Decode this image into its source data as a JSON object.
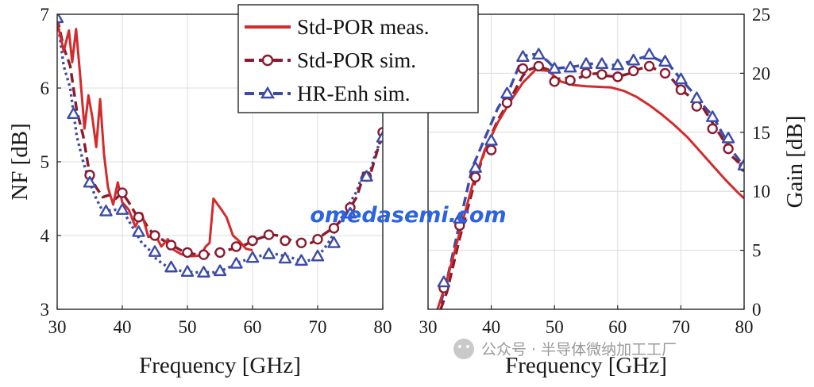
{
  "chart_data": [
    {
      "type": "line",
      "xlabel": "Frequency [GHz]",
      "ylabel": "NF [dB]",
      "xlim": [
        30,
        80
      ],
      "ylim": [
        3,
        7
      ],
      "xticks": [
        30,
        40,
        50,
        60,
        70,
        80
      ],
      "yticks": [
        3,
        4,
        5,
        6,
        7
      ],
      "grid": true,
      "series": [
        {
          "name": "Std-POR meas.",
          "color": "#d32b2b",
          "style": "solid",
          "marker": "none",
          "x": [
            30,
            31,
            31.8,
            32.3,
            32.9,
            33.5,
            34.2,
            34.8,
            35.4,
            36.0,
            36.6,
            37.2,
            37.8,
            38.6,
            39.3,
            40.0,
            41.0,
            42.0,
            43.0,
            44.0,
            45.0,
            46.0,
            47.0,
            48.0,
            49.0,
            50.0,
            51.0,
            52.0,
            52.8,
            53.4,
            54.0,
            55.0,
            56.0,
            57.0,
            58.0,
            59.0,
            60.0
          ],
          "y": [
            6.9,
            6.5,
            6.78,
            6.35,
            6.8,
            6.2,
            5.45,
            5.9,
            5.6,
            5.2,
            5.85,
            5.1,
            4.65,
            4.42,
            4.72,
            4.45,
            4.35,
            4.12,
            4.3,
            3.98,
            4.02,
            3.85,
            3.95,
            3.8,
            3.75,
            3.72,
            3.72,
            3.73,
            3.85,
            3.9,
            4.5,
            4.38,
            4.25,
            4.0,
            3.92,
            3.82,
            3.8
          ]
        },
        {
          "name": "Std-POR sim.",
          "color": "#8b1a2e",
          "style": "dashed",
          "marker": "circle",
          "x": [
            30,
            31,
            32,
            33,
            34,
            35,
            36,
            37,
            38,
            39,
            40,
            41,
            42,
            43,
            44,
            45,
            46,
            47,
            48,
            49,
            50,
            51,
            52,
            53,
            54,
            55,
            56,
            57,
            58,
            59,
            60,
            61,
            62,
            63,
            64,
            65,
            66,
            67,
            68,
            69,
            70,
            71,
            72,
            73,
            74,
            75,
            76,
            77,
            78,
            79,
            80
          ],
          "y": [
            6.95,
            6.55,
            6.3,
            5.7,
            5.35,
            4.82,
            4.65,
            4.52,
            4.55,
            4.5,
            4.58,
            4.45,
            4.3,
            4.25,
            4.1,
            4.0,
            3.95,
            3.9,
            3.85,
            3.8,
            3.77,
            3.75,
            3.74,
            3.74,
            3.76,
            3.77,
            3.8,
            3.82,
            3.85,
            3.88,
            3.93,
            3.96,
            3.99,
            4.01,
            4.0,
            3.98,
            3.93,
            3.91,
            3.89,
            3.9,
            3.95,
            4.02,
            4.08,
            4.15,
            4.25,
            4.38,
            4.52,
            4.8,
            4.8,
            5.1,
            5.4
          ]
        },
        {
          "name": "HR-Enh sim.",
          "color": "#3b4ba8",
          "style": "dotted",
          "marker": "triangle",
          "x": [
            30,
            31,
            32,
            33,
            34,
            35,
            36,
            37,
            38,
            39,
            40,
            41,
            42,
            43,
            44,
            45,
            46,
            47,
            48,
            49,
            50,
            51,
            52,
            53,
            54,
            55,
            56,
            57,
            58,
            59,
            60,
            61,
            62,
            63,
            64,
            65,
            66,
            67,
            68,
            69,
            70,
            71,
            72,
            73,
            74,
            75,
            76,
            77,
            78,
            79,
            80
          ],
          "y": [
            6.95,
            6.3,
            6.0,
            5.35,
            5.0,
            4.72,
            4.5,
            4.33,
            4.34,
            4.35,
            4.35,
            4.2,
            4.05,
            3.9,
            3.82,
            3.7,
            3.63,
            3.57,
            3.55,
            3.52,
            3.51,
            3.5,
            3.5,
            3.5,
            3.5,
            3.52,
            3.55,
            3.6,
            3.64,
            3.67,
            3.7,
            3.72,
            3.74,
            3.76,
            3.74,
            3.72,
            3.7,
            3.67,
            3.65,
            3.67,
            3.72,
            3.82,
            3.95,
            4.12,
            4.3,
            4.45,
            4.6,
            4.85,
            4.85,
            5.15,
            5.33
          ]
        }
      ],
      "markers": {
        "Std-POR sim.": {
          "x": [
            35,
            40,
            42.5,
            45,
            47.5,
            50,
            52.5,
            55,
            57.5,
            60,
            62.5,
            65,
            67.5,
            70,
            72.5,
            75,
            77.5,
            80
          ],
          "y": [
            4.82,
            4.58,
            4.25,
            4.0,
            3.87,
            3.77,
            3.74,
            3.77,
            3.85,
            3.93,
            4.01,
            3.93,
            3.9,
            3.95,
            4.1,
            4.38,
            4.8,
            5.4
          ]
        },
        "HR-Enh sim.": {
          "x": [
            30,
            32.5,
            35,
            37.5,
            40,
            42.5,
            45,
            47.5,
            50,
            52.5,
            55,
            57.5,
            60,
            62.5,
            65,
            67.5,
            70,
            72.5,
            75,
            77.5,
            80
          ],
          "y": [
            6.95,
            5.65,
            4.72,
            4.33,
            4.35,
            4.05,
            3.78,
            3.57,
            3.51,
            3.5,
            3.52,
            3.62,
            3.7,
            3.75,
            3.69,
            3.66,
            3.72,
            3.9,
            4.3,
            4.8,
            5.33
          ]
        }
      }
    },
    {
      "type": "line",
      "xlabel": "Frequency [GHz]",
      "ylabel": "Gain [dB]",
      "xlim": [
        30,
        80
      ],
      "ylim": [
        0,
        25
      ],
      "xticks": [
        30,
        40,
        50,
        60,
        70,
        80
      ],
      "yticks": [
        0,
        5,
        10,
        15,
        20,
        25
      ],
      "grid": true,
      "series": [
        {
          "name": "Std-POR meas.",
          "color": "#d32b2b",
          "style": "solid",
          "marker": "none",
          "x": [
            31.5,
            33,
            35,
            37,
            39,
            41,
            43,
            45,
            47,
            49,
            51,
            53,
            55,
            57,
            59,
            61,
            63,
            65,
            67,
            69,
            71,
            73,
            75,
            77,
            79,
            80
          ],
          "y": [
            0,
            2.5,
            6.5,
            10.5,
            13.5,
            15.8,
            17.6,
            19.2,
            20.3,
            20.2,
            19.3,
            19.0,
            18.9,
            18.85,
            18.8,
            18.5,
            18.0,
            17.3,
            16.5,
            15.6,
            14.6,
            13.4,
            12.2,
            11.0,
            9.9,
            9.4
          ]
        },
        {
          "name": "Std-POR sim.",
          "color": "#8b1a2e",
          "style": "dashed",
          "marker": "circle",
          "x": [
            32,
            33,
            35,
            37,
            39,
            41,
            43,
            45,
            46,
            47.5,
            49,
            50,
            52,
            53.5,
            55,
            57,
            58,
            60,
            62,
            63,
            65,
            67,
            68,
            70,
            72,
            73,
            75,
            77,
            78,
            80
          ],
          "y": [
            0,
            1.5,
            6.0,
            10.0,
            13.5,
            16.0,
            17.8,
            19.8,
            20.3,
            20.6,
            20.3,
            19.5,
            19.6,
            19.5,
            19.9,
            20.0,
            19.8,
            19.7,
            20.0,
            20.3,
            20.6,
            20.1,
            19.9,
            18.6,
            17.8,
            17.5,
            15.8,
            14.1,
            13.0,
            12.0
          ]
        },
        {
          "name": "HR-Enh sim.",
          "color": "#3b4ba8",
          "style": "dashed",
          "marker": "triangle",
          "x": [
            32,
            33,
            35,
            37,
            39,
            41,
            43,
            45,
            46,
            47.5,
            49,
            50,
            52,
            53.5,
            55,
            57,
            58,
            60,
            62,
            63,
            65,
            67,
            68,
            70,
            72,
            73,
            75,
            77,
            78,
            80
          ],
          "y": [
            0.5,
            2.5,
            7.3,
            12.0,
            14.5,
            17.0,
            18.8,
            21.4,
            21.6,
            21.6,
            21.0,
            20.4,
            20.5,
            20.6,
            20.8,
            20.8,
            20.7,
            20.7,
            21.0,
            21.2,
            21.5,
            21.0,
            20.8,
            19.5,
            18.3,
            17.6,
            16.4,
            14.5,
            13.5,
            12.1
          ]
        }
      ],
      "markers": {
        "Std-POR sim.": {
          "x": [
            32.5,
            35,
            37.5,
            40,
            42.5,
            45,
            47.5,
            50,
            52.5,
            55,
            57.5,
            60,
            62.5,
            65,
            67.5,
            70,
            72.5,
            75,
            77.5,
            80
          ],
          "y": [
            1.8,
            7.1,
            11.2,
            13.5,
            17.5,
            20.4,
            20.6,
            19.3,
            19.4,
            20.0,
            19.9,
            19.7,
            20.2,
            20.6,
            20.0,
            18.6,
            17.2,
            15.3,
            13.6,
            12.1
          ]
        },
        "HR-Enh sim.": {
          "x": [
            32.5,
            35,
            37.5,
            40,
            42.5,
            45,
            47.5,
            50,
            52.5,
            55,
            57.5,
            60,
            62.5,
            65,
            67.5,
            70,
            72.5,
            75,
            77.5,
            80
          ],
          "y": [
            2.3,
            7.7,
            12.0,
            14.3,
            18.3,
            21.4,
            21.6,
            20.4,
            20.5,
            20.8,
            20.8,
            20.7,
            21.1,
            21.6,
            21.0,
            19.5,
            17.9,
            16.3,
            14.5,
            12.2
          ]
        }
      }
    }
  ],
  "legend": {
    "placement": "top-center",
    "entries": [
      "Std-POR meas.",
      "Std-POR sim.",
      "HR-Enh sim."
    ]
  },
  "watermarks": {
    "center": "omedasemi.com",
    "footer": "公众号 · 半导体微纳加工工厂"
  }
}
